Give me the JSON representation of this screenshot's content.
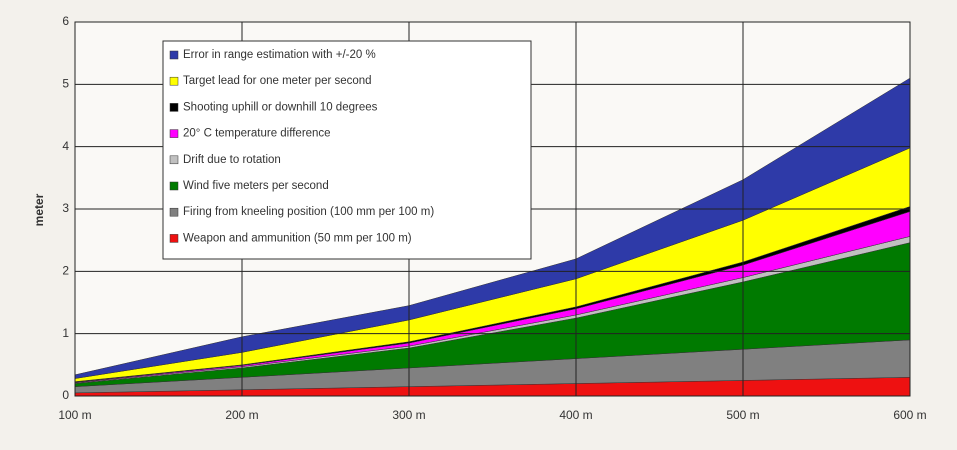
{
  "chart_data": {
    "type": "stacked_area",
    "y_label": "meter",
    "categories": [
      "100 m",
      "200 m",
      "300 m",
      "400 m",
      "500 m",
      "600 m"
    ],
    "ylim": [
      0,
      6
    ],
    "yticks": [
      0,
      1,
      2,
      3,
      4,
      5,
      6
    ],
    "grid": true,
    "series": [
      {
        "name": "Error in range estimation with +/-20 %",
        "color": "#2e3aa8",
        "values": [
          0.06,
          0.25,
          0.23,
          0.32,
          0.65,
          1.12
        ]
      },
      {
        "name": "Target lead for one meter per second",
        "color": "#ffff00",
        "values": [
          0.05,
          0.2,
          0.35,
          0.45,
          0.67,
          0.94
        ]
      },
      {
        "name": "Shooting uphill or downhill 10 degrees",
        "color": "#000000",
        "values": [
          0.01,
          0.01,
          0.02,
          0.03,
          0.05,
          0.08
        ]
      },
      {
        "name": "20° C temperature difference",
        "color": "#ff00ff",
        "values": [
          0.01,
          0.02,
          0.05,
          0.1,
          0.2,
          0.4
        ]
      },
      {
        "name": "Drift due to rotation",
        "color": "#c0c0c0",
        "values": [
          0.01,
          0.02,
          0.03,
          0.05,
          0.07,
          0.1
        ]
      },
      {
        "name": "Wind five meters per second",
        "color": "#007a00",
        "values": [
          0.05,
          0.15,
          0.32,
          0.65,
          1.08,
          1.56
        ]
      },
      {
        "name": "Firing from kneeling position (100 mm per 100 m)",
        "color": "#808080",
        "values": [
          0.1,
          0.2,
          0.3,
          0.4,
          0.5,
          0.6
        ]
      },
      {
        "name": "Weapon and ammunition (50 mm per 100 m)",
        "color": "#ee1111",
        "values": [
          0.05,
          0.1,
          0.15,
          0.2,
          0.25,
          0.3
        ]
      }
    ]
  }
}
